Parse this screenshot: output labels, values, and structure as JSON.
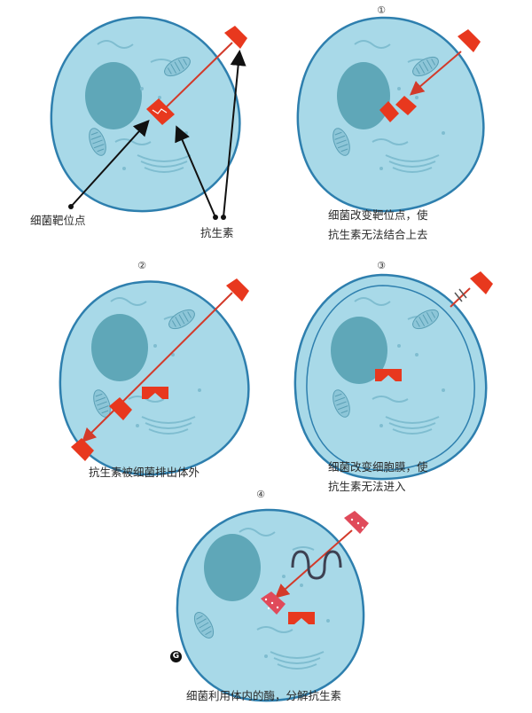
{
  "panels": {
    "main": {
      "label_target": "细菌靶位点",
      "label_antibiotic": "抗生素"
    },
    "p1": {
      "number": "①",
      "caption_line1": "细菌改变靶位点，使",
      "caption_line2": "抗生素无法结合上去"
    },
    "p2": {
      "number": "②",
      "caption": "抗生素被细菌排出体外"
    },
    "p3": {
      "number": "③",
      "caption_line1": "细菌改变细胞膜，使",
      "caption_line2": "抗生素无法进入"
    },
    "p4": {
      "number": "④",
      "caption": "细菌利用体内的酶，分解抗生素"
    }
  },
  "logo": {
    "text": "G"
  },
  "colors": {
    "cell_fill": "#a8d9e8",
    "cell_stroke": "#2e7fae",
    "nucleus": "#5fa7b8",
    "antibiotic": "#e8381e",
    "arrow_red": "#d33a2a",
    "arrow_black": "#111111",
    "enzyme": "#3d4152",
    "degraded": "#e04a5a"
  }
}
